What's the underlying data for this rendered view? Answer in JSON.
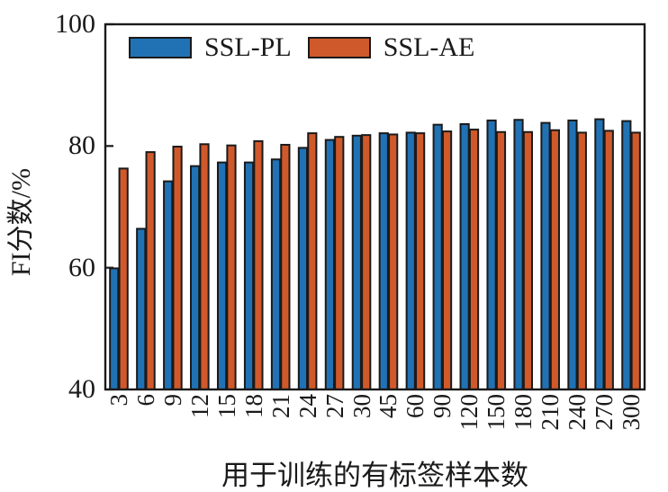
{
  "figure": {
    "background": "#ffffff",
    "text_color": "#1a1a1a",
    "axis_color": "#1a1a1a"
  },
  "chart_data": {
    "type": "bar",
    "title": "",
    "xlabel": "用于训练的有标签样本数",
    "ylabel": "FI分数/%",
    "ylim": [
      40,
      100
    ],
    "yticks": [
      40,
      60,
      80,
      100
    ],
    "grid": false,
    "legend_position": "inside-top-left",
    "tick_direction": "in",
    "bar_edge_color": "#1a1a1a",
    "categories": [
      "3",
      "6",
      "9",
      "12",
      "15",
      "18",
      "21",
      "24",
      "27",
      "30",
      "45",
      "60",
      "90",
      "120",
      "150",
      "180",
      "210",
      "240",
      "270",
      "300"
    ],
    "series": [
      {
        "name": "SSL-PL",
        "color": "#2172b4",
        "values": [
          59.9,
          66.4,
          74.2,
          76.7,
          77.3,
          77.3,
          77.8,
          79.7,
          81.0,
          81.7,
          82.1,
          82.2,
          83.5,
          83.6,
          84.2,
          84.3,
          83.8,
          84.2,
          84.4,
          84.1
        ]
      },
      {
        "name": "SSL-AE",
        "color": "#d0592b",
        "values": [
          76.3,
          79.0,
          79.9,
          80.3,
          80.1,
          80.8,
          80.2,
          82.1,
          81.5,
          81.8,
          81.9,
          82.1,
          82.4,
          82.7,
          82.3,
          82.3,
          82.6,
          82.2,
          82.5,
          82.2
        ]
      }
    ]
  }
}
